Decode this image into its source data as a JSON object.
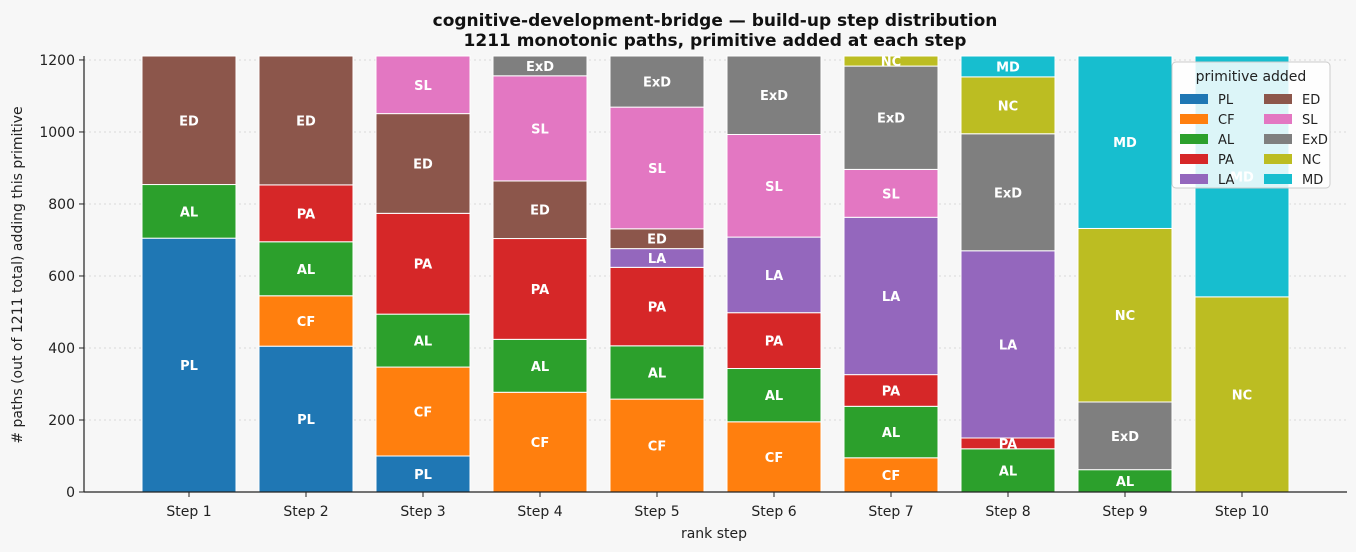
{
  "chart_data": {
    "type": "bar",
    "stacked": true,
    "title": "cognitive-development-bridge — build-up step distribution",
    "subtitle": "1211 monotonic paths, primitive added at each step",
    "xlabel": "rank step",
    "ylabel": "# paths (out of 1211 total) adding this primitive",
    "ylim": [
      0,
      1211
    ],
    "yticks": [
      "0",
      "200",
      "400",
      "600",
      "800",
      "1000",
      "1200"
    ],
    "grid": "horizontal dotted",
    "legend_title": "primitive added",
    "legend_position": "top-right",
    "categories": [
      "Step 1",
      "Step 2",
      "Step 3",
      "Step 4",
      "Step 5",
      "Step 6",
      "Step 7",
      "Step 8",
      "Step 9",
      "Step 10"
    ],
    "series": [
      {
        "name": "PL",
        "color": "#1f77b4",
        "values": [
          705,
          405,
          100,
          0,
          0,
          0,
          0,
          0,
          0,
          0
        ]
      },
      {
        "name": "CF",
        "color": "#ff7f0e",
        "values": [
          0,
          140,
          247,
          277,
          258,
          195,
          95,
          0,
          0,
          0
        ]
      },
      {
        "name": "AL",
        "color": "#2ca02c",
        "values": [
          149,
          150,
          147,
          147,
          148,
          148,
          143,
          120,
          62,
          0
        ]
      },
      {
        "name": "PA",
        "color": "#d62728",
        "values": [
          0,
          158,
          280,
          280,
          218,
          155,
          88,
          30,
          0,
          0
        ]
      },
      {
        "name": "LA",
        "color": "#9467bd",
        "values": [
          0,
          0,
          0,
          0,
          52,
          210,
          437,
          520,
          0,
          0
        ]
      },
      {
        "name": "ED",
        "color": "#8c564b",
        "values": [
          357,
          358,
          277,
          160,
          55,
          0,
          0,
          0,
          0,
          0
        ]
      },
      {
        "name": "SL",
        "color": "#e377c2",
        "values": [
          0,
          0,
          160,
          292,
          338,
          285,
          133,
          0,
          0,
          0
        ]
      },
      {
        "name": "ExD",
        "color": "#7f7f7f",
        "values": [
          0,
          0,
          0,
          55,
          142,
          218,
          287,
          325,
          188,
          0
        ]
      },
      {
        "name": "NC",
        "color": "#bcbd22",
        "values": [
          0,
          0,
          0,
          0,
          0,
          0,
          28,
          158,
          482,
          542
        ]
      },
      {
        "name": "MD",
        "color": "#17becf",
        "values": [
          0,
          0,
          0,
          0,
          0,
          0,
          0,
          58,
          479,
          669
        ]
      }
    ]
  }
}
